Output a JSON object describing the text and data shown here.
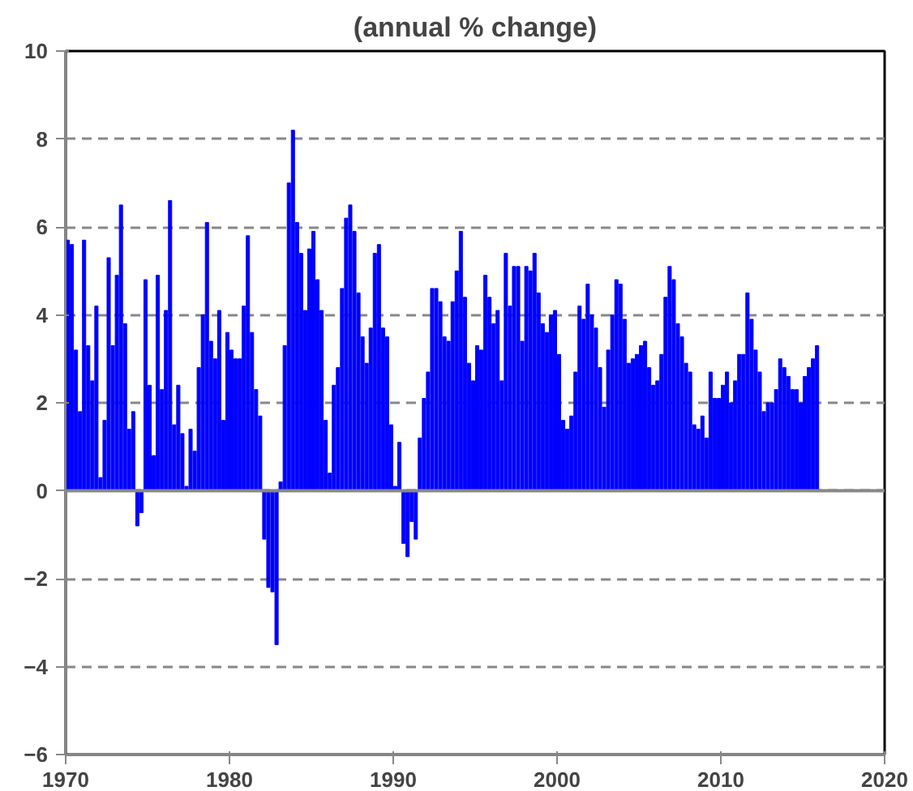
{
  "chart_data": {
    "type": "bar",
    "title": "(annual % change)",
    "x": [
      1970.125,
      1970.375,
      1970.625,
      1970.875,
      1971.125,
      1971.375,
      1971.625,
      1971.875,
      1972.125,
      1972.375,
      1972.625,
      1972.875,
      1973.125,
      1973.375,
      1973.625,
      1973.875,
      1974.125,
      1974.375,
      1974.625,
      1974.875,
      1975.125,
      1975.375,
      1975.625,
      1975.875,
      1976.125,
      1976.375,
      1976.625,
      1976.875,
      1977.125,
      1977.375,
      1977.625,
      1977.875,
      1978.125,
      1978.375,
      1978.625,
      1978.875,
      1979.125,
      1979.375,
      1979.625,
      1979.875,
      1980.125,
      1980.375,
      1980.625,
      1980.875,
      1981.125,
      1981.375,
      1981.625,
      1981.875,
      1982.125,
      1982.375,
      1982.625,
      1982.875,
      1983.125,
      1983.375,
      1983.625,
      1983.875,
      1984.125,
      1984.375,
      1984.625,
      1984.875,
      1985.125,
      1985.375,
      1985.625,
      1985.875,
      1986.125,
      1986.375,
      1986.625,
      1986.875,
      1987.125,
      1987.375,
      1987.625,
      1987.875,
      1988.125,
      1988.375,
      1988.625,
      1988.875,
      1989.125,
      1989.375,
      1989.625,
      1989.875,
      1990.125,
      1990.375,
      1990.625,
      1990.875,
      1991.125,
      1991.375,
      1991.625,
      1991.875,
      1992.125,
      1992.375,
      1992.625,
      1992.875,
      1993.125,
      1993.375,
      1993.625,
      1993.875,
      1994.125,
      1994.375,
      1994.625,
      1994.875,
      1995.125,
      1995.375,
      1995.625,
      1995.875,
      1996.125,
      1996.375,
      1996.625,
      1996.875,
      1997.125,
      1997.375,
      1997.625,
      1997.875,
      1998.125,
      1998.375,
      1998.625,
      1998.875,
      1999.125,
      1999.375,
      1999.625,
      1999.875,
      2000.125,
      2000.375,
      2000.625,
      2000.875,
      2001.125,
      2001.375,
      2001.625,
      2001.875,
      2002.125,
      2002.375,
      2002.625,
      2002.875,
      2003.125,
      2003.375,
      2003.625,
      2003.875,
      2004.125,
      2004.375,
      2004.625,
      2004.875,
      2005.125,
      2005.375,
      2005.625,
      2005.875,
      2006.125,
      2006.375,
      2006.625,
      2006.875,
      2007.125,
      2007.375,
      2007.625,
      2007.875,
      2008.125,
      2008.375,
      2008.625,
      2008.875,
      2009.125,
      2009.375,
      2009.625,
      2009.875,
      2010.125,
      2010.375,
      2010.625,
      2010.875,
      2011.125,
      2011.375,
      2011.625,
      2011.875,
      2012.125,
      2012.375,
      2012.625,
      2012.875,
      2013.125,
      2013.375,
      2013.625,
      2013.875,
      2014.125,
      2014.375,
      2014.625,
      2014.875,
      2015.125,
      2015.375,
      2015.625,
      2015.875
    ],
    "values": [
      5.7,
      5.6,
      3.2,
      1.8,
      5.7,
      3.3,
      2.5,
      4.2,
      0.3,
      1.6,
      5.3,
      3.3,
      4.9,
      6.5,
      3.8,
      1.4,
      1.8,
      -0.8,
      -0.5,
      4.8,
      2.4,
      0.8,
      4.9,
      2.3,
      4.1,
      6.6,
      1.5,
      2.4,
      1.3,
      0.1,
      1.4,
      0.9,
      2.8,
      4.0,
      6.1,
      3.4,
      3.0,
      4.1,
      1.6,
      3.6,
      3.2,
      3.0,
      3.0,
      4.2,
      5.8,
      3.6,
      2.3,
      1.7,
      -1.1,
      -2.2,
      -2.3,
      -3.5,
      0.2,
      3.3,
      7.0,
      8.2,
      6.1,
      5.4,
      4.1,
      5.5,
      5.9,
      4.8,
      4.1,
      1.6,
      0.4,
      2.4,
      2.8,
      4.6,
      6.2,
      6.5,
      5.9,
      4.5,
      3.5,
      2.9,
      3.7,
      5.4,
      5.6,
      3.7,
      3.5,
      1.5,
      0.1,
      1.1,
      -1.2,
      -1.5,
      -0.7,
      -1.1,
      1.2,
      2.1,
      2.7,
      4.6,
      4.6,
      4.3,
      3.5,
      3.4,
      4.3,
      5.0,
      5.9,
      4.4,
      2.9,
      2.5,
      3.3,
      3.2,
      4.9,
      4.4,
      3.8,
      4.1,
      2.5,
      5.4,
      4.2,
      5.1,
      5.1,
      3.4,
      5.1,
      5.0,
      5.4,
      4.5,
      3.8,
      3.6,
      4.0,
      4.1,
      3.1,
      1.6,
      1.4,
      1.7,
      2.7,
      4.2,
      3.9,
      4.7,
      4.0,
      3.7,
      2.8,
      1.9,
      3.2,
      4.0,
      4.8,
      4.7,
      3.9,
      2.9,
      3.0,
      3.1,
      3.3,
      3.4,
      2.8,
      2.4,
      2.5,
      3.1,
      4.4,
      5.1,
      4.8,
      3.8,
      3.5,
      2.9,
      2.7,
      1.5,
      1.4,
      1.7,
      1.2,
      2.7,
      2.1,
      2.1,
      2.4,
      2.7,
      2.0,
      2.5,
      3.1,
      3.1,
      4.5,
      3.9,
      3.2,
      2.7,
      1.8,
      2.0,
      2.0,
      2.3,
      3.0,
      2.8,
      2.6,
      2.3,
      2.3,
      2.0,
      2.6,
      2.8,
      3.0,
      3.3
    ],
    "color": "#0000ff",
    "xlim": [
      1970,
      2020
    ],
    "xticks": [
      1970,
      1980,
      1990,
      2000,
      2010,
      2020
    ],
    "ylim": [
      -6,
      10
    ],
    "yticks": [
      -6,
      -4,
      -2,
      0,
      2,
      4,
      6,
      8,
      10
    ],
    "grid": "y"
  }
}
